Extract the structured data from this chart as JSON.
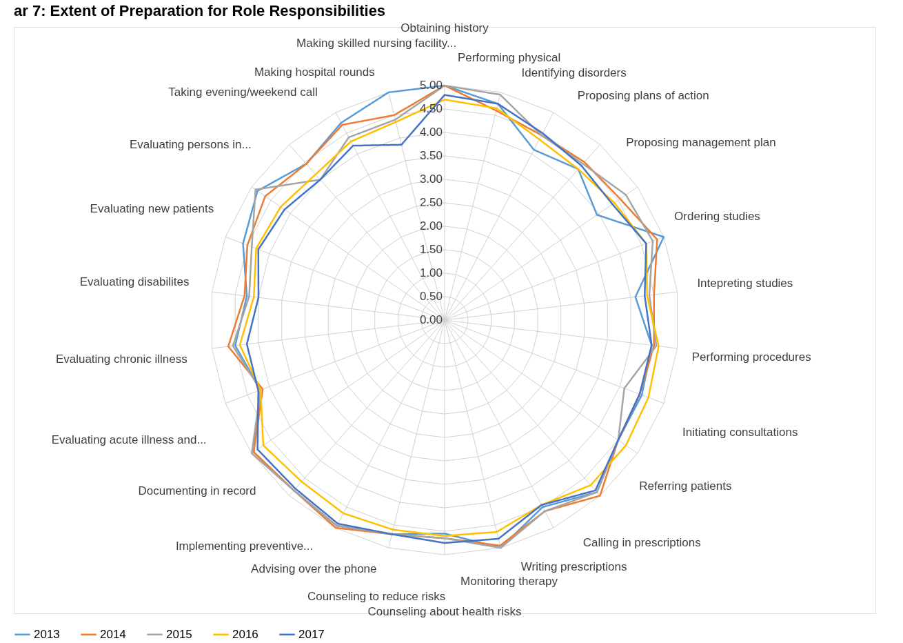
{
  "chart_data": {
    "type": "radar",
    "title": "ar 7: Extent of Preparation for Role Responsibilities",
    "categories": [
      "Obtaining history",
      "Performing physical",
      "Identifying disorders",
      "Proposing plans of action",
      "Proposing management plan",
      "Ordering studies",
      "Intepreting studies",
      "Performing procedures",
      "Initiating consultations",
      "Referring patients",
      "Calling in prescriptions",
      "Writing prescriptions",
      "Monitoring therapy",
      "Counseling about health risks",
      "Counseling to reduce risks",
      "Advising over the phone",
      "Implementing preventive...",
      "Documenting in record",
      "Evaluating acute illness and...",
      "Evaluating chronic illness",
      "Evaluating disabilites",
      "Evaluating new patients",
      "Evaluating persons in...",
      "Taking evening/weekend call",
      "Making hospital rounds",
      "Making skilled nursing facility..."
    ],
    "series": [
      {
        "name": "2013",
        "color": "#5b9bd5",
        "values": [
          5.0,
          4.75,
          4.1,
          4.3,
          3.95,
          5.0,
          4.1,
          4.45,
          4.5,
          4.5,
          4.9,
          4.5,
          5.0,
          4.55,
          4.7,
          4.95,
          4.85,
          4.95,
          4.2,
          4.5,
          4.25,
          4.6,
          4.85,
          4.45,
          4.75,
          5.0
        ]
      },
      {
        "name": "2014",
        "color": "#ed7d31",
        "values": [
          5.0,
          4.6,
          4.45,
          4.5,
          4.55,
          4.85,
          4.5,
          4.5,
          4.45,
          4.5,
          5.0,
          4.6,
          4.95,
          4.65,
          4.7,
          5.0,
          4.85,
          4.95,
          4.15,
          4.65,
          4.3,
          4.5,
          4.65,
          4.45,
          4.7,
          4.5
        ]
      },
      {
        "name": "2015",
        "color": "#a5a5a5",
        "values": [
          5.0,
          4.95,
          4.45,
          4.45,
          4.7,
          4.75,
          4.4,
          4.55,
          4.1,
          4.5,
          4.9,
          4.6,
          5.0,
          4.65,
          4.7,
          4.95,
          4.85,
          5.0,
          4.2,
          4.55,
          4.2,
          4.4,
          4.9,
          4.0,
          4.4,
          4.4
        ]
      },
      {
        "name": "2016",
        "color": "#ffc000",
        "values": [
          4.7,
          4.65,
          4.35,
          4.3,
          4.4,
          4.6,
          4.35,
          4.6,
          4.65,
          4.7,
          4.7,
          4.45,
          4.65,
          4.6,
          4.6,
          4.65,
          4.6,
          4.7,
          4.2,
          4.4,
          4.1,
          4.3,
          4.25,
          4.15,
          4.3,
          4.35
        ]
      },
      {
        "name": "2017",
        "color": "#4472c4",
        "values": [
          4.8,
          4.75,
          4.5,
          4.4,
          4.35,
          4.6,
          4.3,
          4.45,
          4.45,
          4.5,
          4.85,
          4.45,
          4.8,
          4.75,
          4.7,
          4.9,
          4.8,
          4.85,
          4.25,
          4.25,
          4.0,
          4.25,
          4.15,
          4.0,
          4.2,
          3.85
        ]
      }
    ],
    "ylim": [
      0,
      5
    ],
    "yticks": [
      {
        "value": 0,
        "label": "0.00"
      },
      {
        "value": 0.5,
        "label": "0.50"
      },
      {
        "value": 1,
        "label": "1.00"
      },
      {
        "value": 1.5,
        "label": "1.50"
      },
      {
        "value": 2,
        "label": "2.00"
      },
      {
        "value": 2.5,
        "label": "2.50"
      },
      {
        "value": 3,
        "label": "3.00"
      },
      {
        "value": 3.5,
        "label": "3.50"
      },
      {
        "value": 4,
        "label": "4.00"
      },
      {
        "value": 4.5,
        "label": "4.50"
      },
      {
        "value": 5,
        "label": "5.00"
      }
    ],
    "grid": true,
    "legend": "bottom",
    "marker": "none",
    "line_style": "solid"
  }
}
